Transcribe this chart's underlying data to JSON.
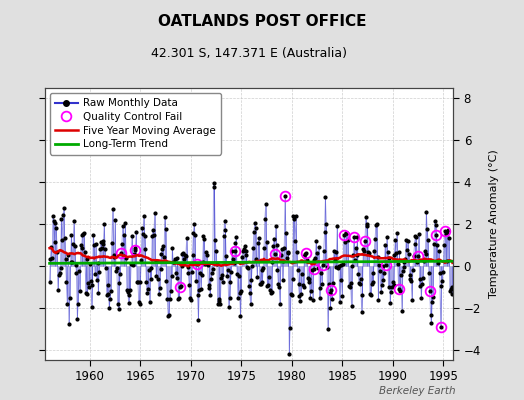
{
  "title": "OATLANDS POST OFFICE",
  "subtitle": "42.301 S, 147.371 E (Australia)",
  "ylabel": "Temperature Anomaly (°C)",
  "watermark": "Berkeley Earth",
  "ylim": [
    -4.5,
    8.5
  ],
  "xlim": [
    1955.5,
    1996.0
  ],
  "xticks": [
    1960,
    1965,
    1970,
    1975,
    1980,
    1985,
    1990,
    1995
  ],
  "yticks": [
    -4,
    -2,
    0,
    2,
    4,
    6,
    8
  ],
  "bg_color": "#e0e0e0",
  "plot_bg_color": "#ffffff",
  "raw_line_color": "#3333cc",
  "raw_dot_color": "#000000",
  "moving_avg_color": "#dd0000",
  "trend_color": "#00aa00",
  "qc_fail_color": "#ff00ff",
  "start_year": 1956,
  "end_year": 1995,
  "seed": 37,
  "trend_value": 0.18,
  "qc_fail_indices": [
    85,
    102,
    155,
    175,
    220,
    268,
    280,
    305,
    315,
    325,
    335,
    350,
    362,
    375,
    400,
    415,
    438,
    452,
    460,
    465,
    470
  ]
}
